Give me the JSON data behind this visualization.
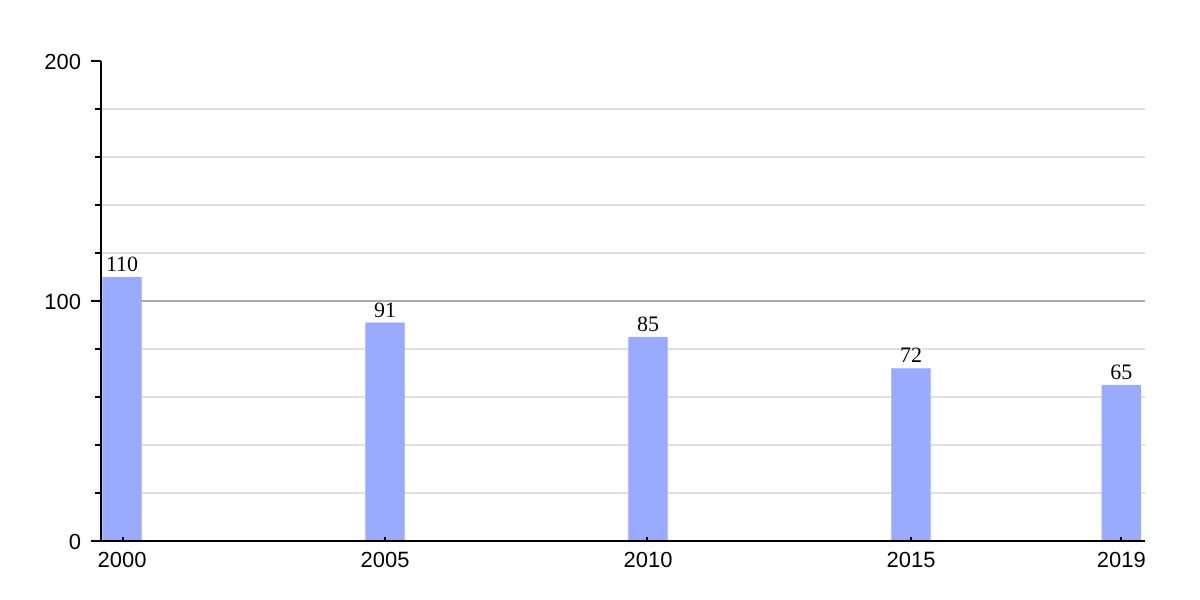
{
  "chart_data": {
    "type": "bar",
    "x": [
      2000,
      2005,
      2010,
      2015,
      2019
    ],
    "values": [
      110,
      91,
      85,
      72,
      65
    ],
    "color": "#99aaff",
    "data_labels": true,
    "xlim": [
      1999.6,
      2019.45
    ],
    "xticks": [
      2000,
      2005,
      2010,
      2015,
      2019
    ],
    "ylim": [
      0,
      200
    ],
    "yticks": [
      0,
      100,
      200
    ],
    "grid": "y"
  }
}
